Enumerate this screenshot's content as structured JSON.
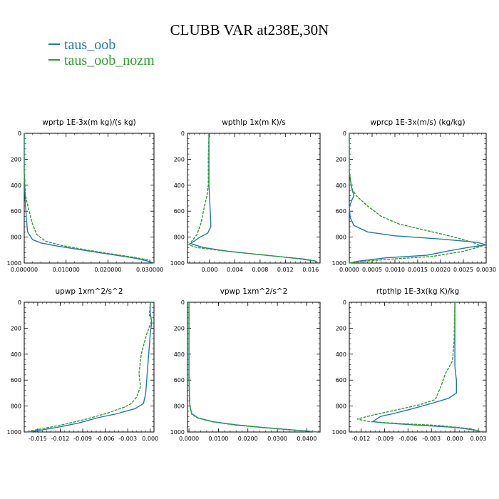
{
  "title": "CLUBB VAR at238E,30N",
  "legend": [
    {
      "label": "taus_oob",
      "color": "#1f77b4"
    },
    {
      "label": "taus_oob_nozm",
      "color": "#2ca02c"
    }
  ],
  "chart_data": [
    {
      "type": "line",
      "title": "wprtp   1E-3x(m kg)/(s kg)",
      "xlim": [
        0.0,
        0.031
      ],
      "ylim": [
        0,
        1000
      ],
      "xticks": [
        0.0,
        0.01,
        0.02,
        0.03
      ],
      "xtick_labels": [
        "0.000000",
        "0.010000",
        "0.020000",
        "0.030000"
      ],
      "yticks": [
        0,
        200,
        400,
        600,
        800,
        1000
      ],
      "ytick_labels": [
        "0",
        "200",
        "400",
        "600",
        "800",
        "1000"
      ],
      "series": [
        {
          "name": "taus_oob",
          "points": [
            [
              0.0,
              0
            ],
            [
              0.0,
              300
            ],
            [
              0.0002,
              500
            ],
            [
              0.0005,
              650
            ],
            [
              0.0008,
              760
            ],
            [
              0.002,
              820
            ],
            [
              0.004,
              845
            ],
            [
              0.008,
              870
            ],
            [
              0.014,
              900
            ],
            [
              0.02,
              930
            ],
            [
              0.026,
              960
            ],
            [
              0.029,
              980
            ],
            [
              0.031,
              1000
            ]
          ]
        },
        {
          "name": "taus_oob_nozm",
          "points": [
            [
              0.0,
              0
            ],
            [
              0.0,
              300
            ],
            [
              0.0003,
              480
            ],
            [
              0.001,
              580
            ],
            [
              0.002,
              700
            ],
            [
              0.003,
              780
            ],
            [
              0.005,
              830
            ],
            [
              0.009,
              865
            ],
            [
              0.015,
              900
            ],
            [
              0.021,
              930
            ],
            [
              0.026,
              955
            ],
            [
              0.0295,
              975
            ],
            [
              0.0305,
              1000
            ]
          ]
        }
      ]
    },
    {
      "type": "line",
      "title": "wpthlp   1x(m K)/s",
      "xlim": [
        -0.0035,
        0.0175
      ],
      "ylim": [
        0,
        1000
      ],
      "xticks": [
        0.0,
        0.004,
        0.008,
        0.012,
        0.016
      ],
      "xtick_labels": [
        "0.000",
        "0.004",
        "0.008",
        "0.012",
        "0.016"
      ],
      "yticks": [
        0,
        200,
        400,
        600,
        800,
        1000
      ],
      "ytick_labels": [
        "0",
        "200",
        "400",
        "600",
        "800",
        "1000"
      ],
      "series": [
        {
          "name": "taus_oob",
          "points": [
            [
              -0.0001,
              0
            ],
            [
              -0.0001,
              200
            ],
            [
              -0.0001,
              400
            ],
            [
              0.0,
              500
            ],
            [
              0.0001,
              600
            ],
            [
              0.0002,
              720
            ],
            [
              -0.0003,
              770
            ],
            [
              -0.0015,
              800
            ],
            [
              -0.003,
              850
            ],
            [
              -0.001,
              880
            ],
            [
              0.003,
              910
            ],
            [
              0.008,
              935
            ],
            [
              0.012,
              955
            ],
            [
              0.015,
              970
            ],
            [
              0.0168,
              985
            ],
            [
              0.0172,
              1000
            ]
          ]
        },
        {
          "name": "taus_oob_nozm",
          "points": [
            [
              -0.0001,
              0
            ],
            [
              -0.0002,
              200
            ],
            [
              -0.0002,
              400
            ],
            [
              -0.0004,
              480
            ],
            [
              -0.0008,
              560
            ],
            [
              -0.0014,
              700
            ],
            [
              -0.002,
              780
            ],
            [
              -0.0028,
              830
            ],
            [
              -0.0033,
              860
            ],
            [
              -0.002,
              880
            ],
            [
              0.002,
              905
            ],
            [
              0.007,
              930
            ],
            [
              0.011,
              950
            ],
            [
              0.0145,
              970
            ],
            [
              0.0168,
              985
            ],
            [
              0.0172,
              1000
            ]
          ]
        }
      ]
    },
    {
      "type": "line",
      "title": "wprcp   1E-3x(m/s) (kg/kg)",
      "xlim": [
        0.0,
        0.003
      ],
      "ylim": [
        0,
        1000
      ],
      "xticks": [
        0.0,
        0.0005,
        0.001,
        0.0015,
        0.002,
        0.0025,
        0.003
      ],
      "xtick_labels": [
        "0.0000",
        "0.0005",
        "0.0010",
        "0.0015",
        "0.0020",
        "0.0025",
        "0.0030"
      ],
      "yticks": [
        0,
        200,
        400,
        600,
        800,
        1000
      ],
      "ytick_labels": [
        "0",
        "200",
        "400",
        "600",
        "800",
        "1000"
      ],
      "series": [
        {
          "name": "taus_oob",
          "points": [
            [
              0.0,
              0
            ],
            [
              0.0,
              300
            ],
            [
              5e-05,
              420
            ],
            [
              0.0001,
              480
            ],
            [
              5e-05,
              520
            ],
            [
              0.0,
              570
            ],
            [
              2e-05,
              650
            ],
            [
              0.0001,
              710
            ],
            [
              0.0004,
              760
            ],
            [
              0.001,
              790
            ],
            [
              0.002,
              815
            ],
            [
              0.0028,
              840
            ],
            [
              0.003,
              860
            ],
            [
              0.0026,
              880
            ],
            [
              0.0022,
              905
            ],
            [
              0.0017,
              940
            ],
            [
              0.0008,
              960
            ],
            [
              0.0002,
              985
            ],
            [
              0.0,
              1000
            ]
          ]
        },
        {
          "name": "taus_oob_nozm",
          "points": [
            [
              0.0,
              0
            ],
            [
              0.0,
              300
            ],
            [
              5e-05,
              420
            ],
            [
              0.00015,
              480
            ],
            [
              0.0004,
              560
            ],
            [
              0.0007,
              640
            ],
            [
              0.0011,
              700
            ],
            [
              0.0017,
              750
            ],
            [
              0.0023,
              800
            ],
            [
              0.0027,
              840
            ],
            [
              0.0029,
              870
            ],
            [
              0.0025,
              910
            ],
            [
              0.0018,
              950
            ],
            [
              0.0009,
              970
            ],
            [
              0.0002,
              990
            ],
            [
              0.0,
              1000
            ]
          ]
        }
      ]
    },
    {
      "type": "line",
      "title": "upwp   1xm^2/s^2",
      "xlim": [
        -0.0168,
        0.0005
      ],
      "ylim": [
        0,
        1000
      ],
      "xticks": [
        -0.015,
        -0.012,
        -0.009,
        -0.006,
        -0.003,
        0.0
      ],
      "xtick_labels": [
        "-0.015",
        "-0.012",
        "-0.009",
        "-0.006",
        "-0.003",
        "0.000"
      ],
      "yticks": [
        0,
        200,
        400,
        600,
        800,
        1000
      ],
      "ytick_labels": [
        "0",
        "200",
        "400",
        "600",
        "800",
        "1000"
      ],
      "series": [
        {
          "name": "taus_oob",
          "points": [
            [
              0.0,
              0
            ],
            [
              0.0,
              80
            ],
            [
              0.0002,
              150
            ],
            [
              0.0,
              250
            ],
            [
              -0.0002,
              400
            ],
            [
              -0.0004,
              550
            ],
            [
              -0.0006,
              700
            ],
            [
              -0.0009,
              780
            ],
            [
              -0.002,
              820
            ],
            [
              -0.0045,
              860
            ],
            [
              -0.007,
              890
            ],
            [
              -0.0095,
              930
            ],
            [
              -0.012,
              960
            ],
            [
              -0.0145,
              985
            ],
            [
              -0.0162,
              1000
            ]
          ]
        },
        {
          "name": "taus_oob_nozm",
          "points": [
            [
              0.0,
              0
            ],
            [
              -0.0001,
              100
            ],
            [
              0.0002,
              140
            ],
            [
              -0.0005,
              250
            ],
            [
              -0.0012,
              400
            ],
            [
              -0.0015,
              550
            ],
            [
              -0.0013,
              650
            ],
            [
              -0.0018,
              730
            ],
            [
              -0.0025,
              780
            ],
            [
              -0.0035,
              810
            ],
            [
              -0.006,
              860
            ],
            [
              -0.0085,
              900
            ],
            [
              -0.011,
              935
            ],
            [
              -0.0135,
              965
            ],
            [
              -0.0158,
              990
            ],
            [
              -0.0165,
              1000
            ]
          ]
        }
      ]
    },
    {
      "type": "line",
      "title": "vpwp   1xm^2/s^2",
      "xlim": [
        -0.0005,
        0.0445
      ],
      "ylim": [
        0,
        1000
      ],
      "xticks": [
        0.0,
        0.01,
        0.02,
        0.03,
        0.04
      ],
      "xtick_labels": [
        "0.0000",
        "0.0100",
        "0.0200",
        "0.0300",
        "0.0400"
      ],
      "yticks": [
        0,
        200,
        400,
        600,
        800,
        1000
      ],
      "ytick_labels": [
        "0",
        "200",
        "400",
        "600",
        "800",
        "1000"
      ],
      "series": [
        {
          "name": "taus_oob",
          "points": [
            [
              0.0,
              0
            ],
            [
              0.0,
              600
            ],
            [
              0.0003,
              800
            ],
            [
              0.001,
              860
            ],
            [
              0.003,
              890
            ],
            [
              0.008,
              920
            ],
            [
              0.016,
              945
            ],
            [
              0.025,
              965
            ],
            [
              0.034,
              982
            ],
            [
              0.041,
              994
            ],
            [
              0.0435,
              1000
            ]
          ]
        },
        {
          "name": "taus_oob_nozm",
          "points": [
            [
              0.0,
              0
            ],
            [
              0.0,
              600
            ],
            [
              0.0003,
              810
            ],
            [
              0.001,
              865
            ],
            [
              0.003,
              893
            ],
            [
              0.008,
              922
            ],
            [
              0.016,
              947
            ],
            [
              0.025,
              966
            ],
            [
              0.034,
              983
            ],
            [
              0.041,
              995
            ],
            [
              0.0435,
              1000
            ]
          ]
        }
      ]
    },
    {
      "type": "line",
      "title": "rtpthlp   1E-3x(kg K)/kg",
      "xlim": [
        -0.0135,
        0.004
      ],
      "ylim": [
        0,
        1000
      ],
      "xticks": [
        -0.012,
        -0.009,
        -0.006,
        -0.003,
        0.0,
        0.003
      ],
      "xtick_labels": [
        "-0.012",
        "-0.009",
        "-0.006",
        "-0.003",
        "0.000",
        "0.003"
      ],
      "yticks": [
        0,
        200,
        400,
        600,
        800,
        1000
      ],
      "ytick_labels": [
        "0",
        "200",
        "400",
        "600",
        "800",
        "1000"
      ],
      "series": [
        {
          "name": "taus_oob",
          "points": [
            [
              0.0,
              0
            ],
            [
              0.0,
              300
            ],
            [
              0.0,
              500
            ],
            [
              0.0002,
              600
            ],
            [
              0.0002,
              700
            ],
            [
              -0.0008,
              740
            ],
            [
              -0.003,
              780
            ],
            [
              -0.006,
              830
            ],
            [
              -0.008,
              860
            ],
            [
              -0.0095,
              880
            ],
            [
              -0.01,
              900
            ],
            [
              -0.0105,
              920
            ],
            [
              -0.009,
              930
            ],
            [
              -0.004,
              950
            ],
            [
              0.0,
              965
            ],
            [
              0.002,
              980
            ],
            [
              0.0035,
              1000
            ]
          ]
        },
        {
          "name": "taus_oob_nozm",
          "points": [
            [
              0.0,
              0
            ],
            [
              -0.0001,
              300
            ],
            [
              -0.0003,
              450
            ],
            [
              -0.0012,
              550
            ],
            [
              -0.0018,
              650
            ],
            [
              -0.0025,
              750
            ],
            [
              -0.0045,
              790
            ],
            [
              -0.0075,
              830
            ],
            [
              -0.0105,
              870
            ],
            [
              -0.0125,
              900
            ],
            [
              -0.011,
              920
            ],
            [
              -0.007,
              935
            ],
            [
              -0.002,
              950
            ],
            [
              0.002,
              975
            ],
            [
              0.0035,
              1000
            ]
          ]
        }
      ]
    }
  ]
}
